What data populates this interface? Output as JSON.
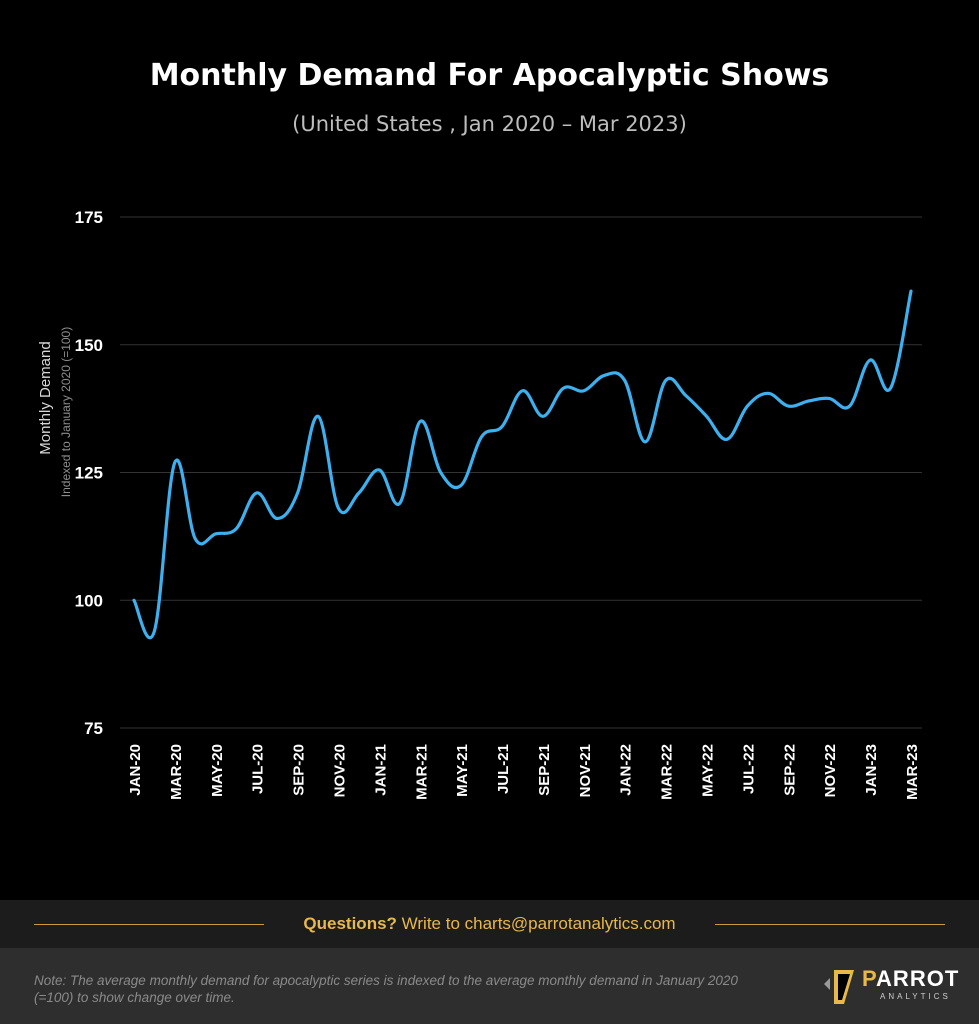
{
  "title": "Monthly Demand For Apocalyptic Shows",
  "subtitle": "(United States , Jan 2020 – Mar 2023)",
  "footer": {
    "question": "Questions?",
    "write": "Write to charts@parrotanalytics.com"
  },
  "note": "Note: The average monthly demand for apocalyptic series is indexed to the average  monthly demand in January 2020 (=100) to show change over time.",
  "brand": {
    "name": "PARROT",
    "sub": "ANALYTICS"
  },
  "colors": {
    "line": "#3db0ef",
    "background": "#000000",
    "accent": "#e8b84b"
  },
  "chart_data": {
    "type": "line",
    "ylabel": "Monthly Demand",
    "ylabel_sub": "Indexed to January 2020 (=100)",
    "ylim": [
      75,
      175
    ],
    "yticks": [
      75,
      100,
      125,
      150,
      175
    ],
    "grid": true,
    "tick_labels": [
      "JAN-20",
      "MAR-20",
      "MAY-20",
      "JUL-20",
      "SEP-20",
      "NOV-20",
      "JAN-21",
      "MAR-21",
      "MAY-21",
      "JUL-21",
      "SEP-21",
      "NOV-21",
      "JAN-22",
      "MAR-22",
      "MAY-22",
      "JUL-22",
      "SEP-22",
      "NOV-22",
      "JAN-23",
      "MAR-23"
    ],
    "categories": [
      "JAN-20",
      "FEB-20",
      "MAR-20",
      "APR-20",
      "MAY-20",
      "JUN-20",
      "JUL-20",
      "AUG-20",
      "SEP-20",
      "OCT-20",
      "NOV-20",
      "DEC-20",
      "JAN-21",
      "FEB-21",
      "MAR-21",
      "APR-21",
      "MAY-21",
      "JUN-21",
      "JUL-21",
      "AUG-21",
      "SEP-21",
      "OCT-21",
      "NOV-21",
      "DEC-21",
      "JAN-22",
      "FEB-22",
      "MAR-22",
      "APR-22",
      "MAY-22",
      "JUN-22",
      "JUL-22",
      "AUG-22",
      "SEP-22",
      "OCT-22",
      "NOV-22",
      "DEC-22",
      "JAN-23",
      "FEB-23",
      "MAR-23"
    ],
    "values": [
      100,
      94,
      127,
      112,
      113,
      114,
      121,
      116,
      121,
      136,
      118,
      121,
      125.5,
      119,
      135,
      125,
      122.5,
      132,
      134,
      141,
      136,
      141.5,
      141,
      144,
      143,
      131,
      143,
      140,
      136,
      131.5,
      138,
      140.5,
      138,
      139,
      139.5,
      138,
      147,
      141.5,
      160.5
    ]
  }
}
